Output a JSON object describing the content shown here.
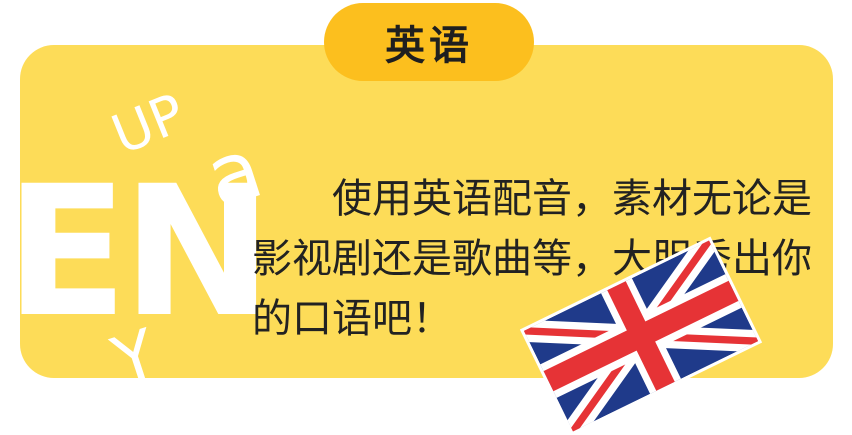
{
  "section": {
    "tab_label": "英语",
    "description": "使用英语配音，素材无论是影视剧还是歌曲等，大胆秀出你的口语吧！"
  },
  "decorations": {
    "up": "UP",
    "en": "EN",
    "a": "a",
    "y": "Y",
    "flag": "uk-flag"
  },
  "colors": {
    "card": "#fddc58",
    "tab": "#fcbf1e",
    "text": "#222222",
    "decor_text": "#ffffff",
    "flag_blue": "#1f3a8a",
    "flag_red": "#e63336"
  }
}
